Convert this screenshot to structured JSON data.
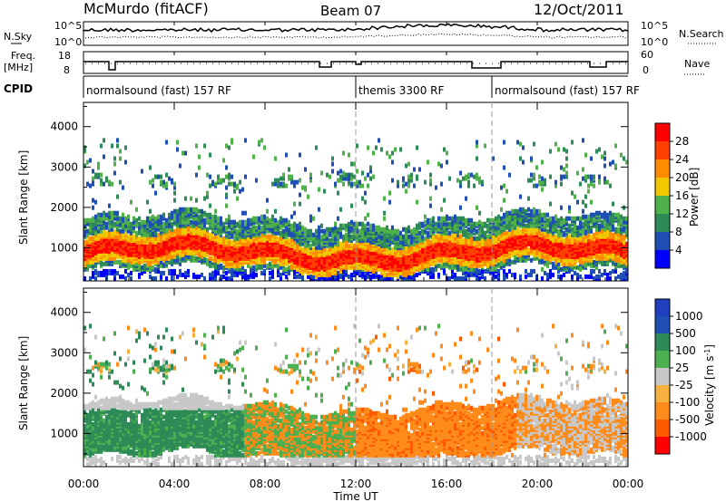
{
  "header": {
    "station": "McMurdo (fitACF)",
    "beam": "Beam 07",
    "date": "12/Oct/2011"
  },
  "side_labels": {
    "nsky": "N.Sky",
    "nsearch": "N.Search",
    "freq": "Freq.",
    "freq_unit": "[MHz]",
    "nave": "Nave",
    "cpid": "CPID"
  },
  "noise_axis": {
    "left_ticks": [
      "10^5",
      "10^0"
    ],
    "right_ticks": [
      "10^5",
      "10^0"
    ]
  },
  "freq_axis": {
    "left_ticks": [
      "18",
      "8"
    ],
    "right_ticks": [
      "60",
      "0"
    ]
  },
  "cpid_segments": [
    {
      "label": "normalsound (fast) 157 RF",
      "start_hour": 0
    },
    {
      "label": "themis 3300 RF",
      "start_hour": 12
    },
    {
      "label": "normalsound (fast) 157 RF",
      "start_hour": 18
    }
  ],
  "x_axis": {
    "label": "Time UT",
    "ticks": [
      "00:00",
      "04:00",
      "08:00",
      "12:00",
      "16:00",
      "20:00",
      "00:00"
    ]
  },
  "colors": {
    "power": [
      "#0000ff",
      "#1f4fb4",
      "#2e8b57",
      "#50b04a",
      "#f0c800",
      "#ff8c00",
      "#ff4000",
      "#ff0000"
    ],
    "velocity": [
      "#ff0000",
      "#ff5a00",
      "#ff8c1a",
      "#f5b040",
      "#c8c8c8",
      "#4caf50",
      "#2e8b57",
      "#1f4fb4",
      "#2040c0"
    ]
  },
  "chart_data": [
    {
      "type": "heatmap",
      "title": "Power",
      "ylabel": "Slant Range [km]",
      "xlabel": "",
      "x_range_hours": [
        0,
        24
      ],
      "ylim": [
        180,
        4600
      ],
      "yticks": [
        1000,
        2000,
        3000,
        4000
      ],
      "colorbar": {
        "label": "Power [dB]",
        "range": [
          0,
          32
        ],
        "ticks": [
          4,
          8,
          12,
          16,
          20,
          24,
          28
        ]
      }
    },
    {
      "type": "heatmap",
      "title": "Velocity",
      "ylabel": "Slant Range [km]",
      "xlabel": "Time UT",
      "x_range_hours": [
        0,
        24
      ],
      "ylim": [
        180,
        4600
      ],
      "yticks": [
        1000,
        2000,
        3000,
        4000
      ],
      "colorbar": {
        "label": "Velocity [m s^-1]",
        "ticks": [
          "1000",
          "500",
          "100",
          "25",
          "-25",
          "-100",
          "-500",
          "-1000"
        ]
      }
    }
  ]
}
